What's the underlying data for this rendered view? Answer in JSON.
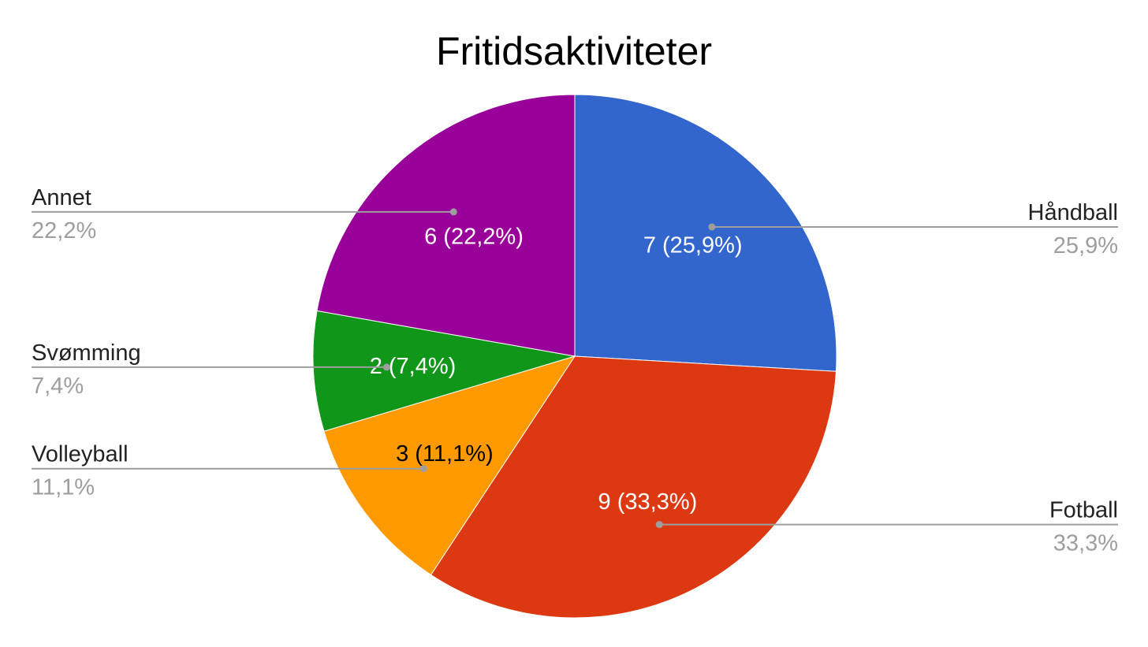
{
  "chart_data": {
    "type": "pie",
    "title": "Fritidsaktiviteter",
    "categories": [
      "Håndball",
      "Fotball",
      "Volleyball",
      "Svømming",
      "Annet"
    ],
    "values": [
      7,
      9,
      3,
      2,
      6
    ],
    "percent_labels": [
      "25,9%",
      "33,3%",
      "11,1%",
      "7,4%",
      "22,2%"
    ],
    "slice_labels": [
      "7 (25,9%)",
      "9 (33,3%)",
      "3 (11,1%)",
      "2 (7,4%)",
      "6 (22,2%)"
    ],
    "colors": [
      "#3366cc",
      "#dc3912",
      "#ff9900",
      "#109618",
      "#990099"
    ],
    "label_colors": [
      "#ffffff",
      "#ffffff",
      "#000000",
      "#ffffff",
      "#ffffff"
    ],
    "legend_placement": "labeled"
  }
}
